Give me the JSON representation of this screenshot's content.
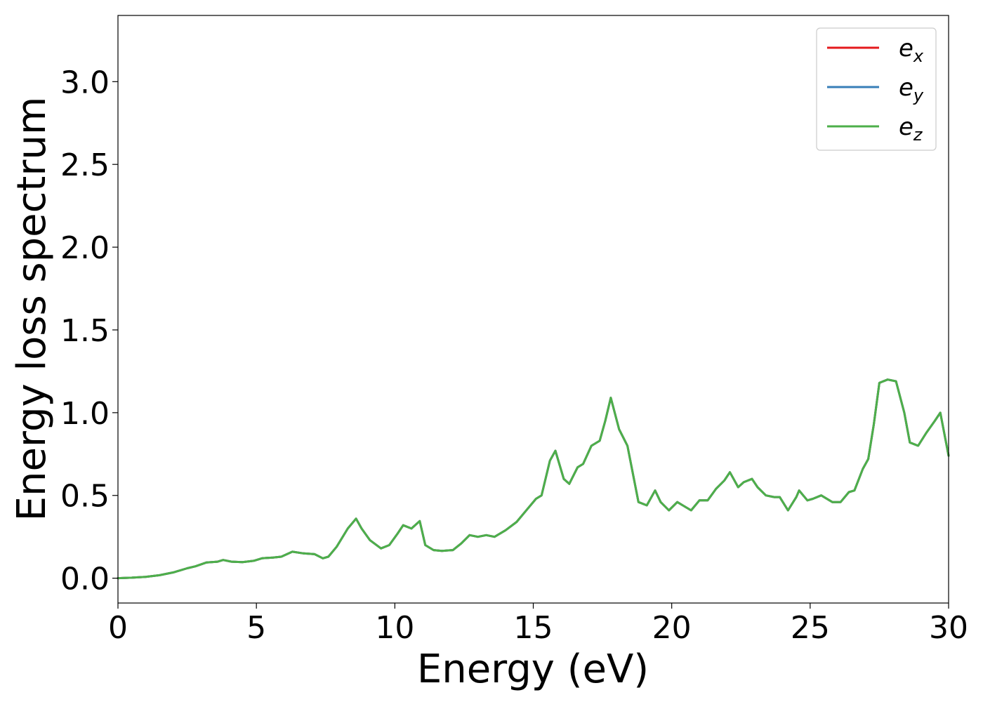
{
  "chart_data": {
    "type": "line",
    "xlabel": "Energy (eV)",
    "ylabel": "Energy loss spectrum",
    "xlim": [
      0,
      30
    ],
    "ylim": [
      -0.15,
      3.4
    ],
    "xticks": [
      0,
      5,
      10,
      15,
      20,
      25,
      30
    ],
    "yticks": [
      0.0,
      0.5,
      1.0,
      1.5,
      2.0,
      2.5,
      3.0
    ],
    "xtick_labels": [
      "0",
      "5",
      "10",
      "15",
      "20",
      "25",
      "30"
    ],
    "ytick_labels": [
      "0.0",
      "0.5",
      "1.0",
      "1.5",
      "2.0",
      "2.5",
      "3.0"
    ],
    "grid": false,
    "legend_position": "top-right",
    "x": [
      0,
      0.5,
      1.0,
      1.5,
      2.0,
      2.5,
      2.8,
      3.2,
      3.6,
      3.8,
      4.1,
      4.5,
      4.9,
      5.2,
      5.6,
      5.9,
      6.3,
      6.7,
      7.1,
      7.4,
      7.6,
      7.9,
      8.3,
      8.6,
      8.8,
      9.1,
      9.5,
      9.8,
      10.1,
      10.3,
      10.6,
      10.9,
      11.1,
      11.4,
      11.7,
      12.1,
      12.4,
      12.7,
      13.0,
      13.3,
      13.6,
      14.0,
      14.4,
      14.8,
      15.1,
      15.3,
      15.6,
      15.8,
      16.1,
      16.3,
      16.6,
      16.8,
      17.1,
      17.4,
      17.6,
      17.8,
      18.1,
      18.4,
      18.8,
      19.1,
      19.4,
      19.6,
      19.9,
      20.2,
      20.4,
      20.7,
      21.0,
      21.3,
      21.6,
      21.9,
      22.1,
      22.4,
      22.6,
      22.9,
      23.1,
      23.4,
      23.7,
      23.9,
      24.2,
      24.5,
      24.6,
      24.9,
      25.1,
      25.4,
      25.8,
      26.1,
      26.4,
      26.6,
      26.9,
      27.1,
      27.3,
      27.5,
      27.8,
      28.1,
      28.4,
      28.6,
      28.9,
      29.2,
      29.5,
      29.7,
      30.0
    ],
    "series": [
      {
        "name": "e_x",
        "color": "#e41a1c",
        "values": [
          0.0,
          0.003,
          0.008,
          0.018,
          0.035,
          0.06,
          0.072,
          0.095,
          0.1,
          0.11,
          0.1,
          0.097,
          0.105,
          0.12,
          0.125,
          0.13,
          0.16,
          0.15,
          0.145,
          0.12,
          0.13,
          0.19,
          0.3,
          0.36,
          0.3,
          0.23,
          0.18,
          0.2,
          0.27,
          0.32,
          0.3,
          0.345,
          0.2,
          0.17,
          0.165,
          0.17,
          0.21,
          0.26,
          0.25,
          0.26,
          0.25,
          0.29,
          0.34,
          0.42,
          0.48,
          0.5,
          0.71,
          0.77,
          0.6,
          0.57,
          0.67,
          0.69,
          0.8,
          0.83,
          0.95,
          1.09,
          0.9,
          0.8,
          0.46,
          0.44,
          0.53,
          0.46,
          0.41,
          0.46,
          0.44,
          0.41,
          0.47,
          0.47,
          0.54,
          0.59,
          0.64,
          0.55,
          0.58,
          0.6,
          0.55,
          0.5,
          0.49,
          0.49,
          0.41,
          0.49,
          0.53,
          0.47,
          0.48,
          0.5,
          0.46,
          0.46,
          0.52,
          0.53,
          0.66,
          0.72,
          0.93,
          1.18,
          1.2,
          1.19,
          1.0,
          0.82,
          0.8,
          0.88,
          0.95,
          1.0,
          0.74
        ]
      },
      {
        "name": "e_y",
        "color": "#377eb8",
        "values": [
          0.0,
          0.003,
          0.008,
          0.018,
          0.035,
          0.06,
          0.072,
          0.095,
          0.1,
          0.11,
          0.1,
          0.097,
          0.105,
          0.12,
          0.125,
          0.13,
          0.16,
          0.15,
          0.145,
          0.12,
          0.13,
          0.19,
          0.3,
          0.36,
          0.3,
          0.23,
          0.18,
          0.2,
          0.27,
          0.32,
          0.3,
          0.345,
          0.2,
          0.17,
          0.165,
          0.17,
          0.21,
          0.26,
          0.25,
          0.26,
          0.25,
          0.29,
          0.34,
          0.42,
          0.48,
          0.5,
          0.71,
          0.77,
          0.6,
          0.57,
          0.67,
          0.69,
          0.8,
          0.83,
          0.95,
          1.09,
          0.9,
          0.8,
          0.46,
          0.44,
          0.53,
          0.46,
          0.41,
          0.46,
          0.44,
          0.41,
          0.47,
          0.47,
          0.54,
          0.59,
          0.64,
          0.55,
          0.58,
          0.6,
          0.55,
          0.5,
          0.49,
          0.49,
          0.41,
          0.49,
          0.53,
          0.47,
          0.48,
          0.5,
          0.46,
          0.46,
          0.52,
          0.53,
          0.66,
          0.72,
          0.93,
          1.18,
          1.2,
          1.19,
          1.0,
          0.82,
          0.8,
          0.88,
          0.95,
          1.0,
          0.74
        ]
      },
      {
        "name": "e_z",
        "color": "#4daf4a",
        "values": [
          0.0,
          0.003,
          0.008,
          0.018,
          0.035,
          0.06,
          0.072,
          0.095,
          0.1,
          0.11,
          0.1,
          0.097,
          0.105,
          0.12,
          0.125,
          0.13,
          0.16,
          0.15,
          0.145,
          0.12,
          0.13,
          0.19,
          0.3,
          0.36,
          0.3,
          0.23,
          0.18,
          0.2,
          0.27,
          0.32,
          0.3,
          0.345,
          0.2,
          0.17,
          0.165,
          0.17,
          0.21,
          0.26,
          0.25,
          0.26,
          0.25,
          0.29,
          0.34,
          0.42,
          0.48,
          0.5,
          0.71,
          0.77,
          0.6,
          0.57,
          0.67,
          0.69,
          0.8,
          0.83,
          0.95,
          1.09,
          0.9,
          0.8,
          0.46,
          0.44,
          0.53,
          0.46,
          0.41,
          0.46,
          0.44,
          0.41,
          0.47,
          0.47,
          0.54,
          0.59,
          0.64,
          0.55,
          0.58,
          0.6,
          0.55,
          0.5,
          0.49,
          0.49,
          0.41,
          0.49,
          0.53,
          0.47,
          0.48,
          0.5,
          0.46,
          0.46,
          0.52,
          0.53,
          0.66,
          0.72,
          0.93,
          1.18,
          1.2,
          1.19,
          1.0,
          0.82,
          0.8,
          0.88,
          0.95,
          1.0,
          0.74
        ]
      }
    ],
    "legend": [
      {
        "base": "e",
        "sub": "x",
        "color": "#e41a1c"
      },
      {
        "base": "e",
        "sub": "y",
        "color": "#377eb8"
      },
      {
        "base": "e",
        "sub": "z",
        "color": "#4daf4a"
      }
    ]
  }
}
